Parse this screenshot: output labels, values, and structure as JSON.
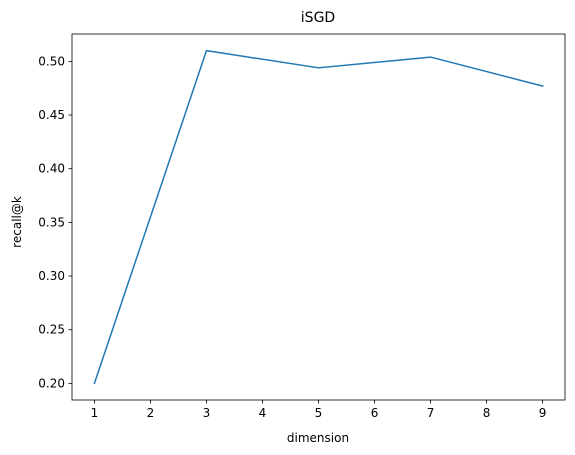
{
  "chart_data": {
    "type": "line",
    "title": "iSGD",
    "xlabel": "dimension",
    "ylabel": "recall@k",
    "x": [
      1,
      3,
      5,
      7,
      9
    ],
    "series": [
      {
        "values": [
          0.2,
          0.51,
          0.494,
          0.504,
          0.477
        ],
        "color": "#1f77b4"
      }
    ],
    "xlim": [
      0.6,
      9.4
    ],
    "ylim": [
      0.1845,
      0.5255
    ],
    "xticks": [
      "1",
      "2",
      "3",
      "4",
      "5",
      "6",
      "7",
      "8",
      "9"
    ],
    "xtick_values": [
      1,
      2,
      3,
      4,
      5,
      6,
      7,
      8,
      9
    ],
    "yticks": [
      "0.20",
      "0.25",
      "0.30",
      "0.35",
      "0.40",
      "0.45",
      "0.50"
    ],
    "ytick_values": [
      0.2,
      0.25,
      0.3,
      0.35,
      0.4,
      0.45,
      0.5
    ],
    "grid": false,
    "legend": "none"
  }
}
